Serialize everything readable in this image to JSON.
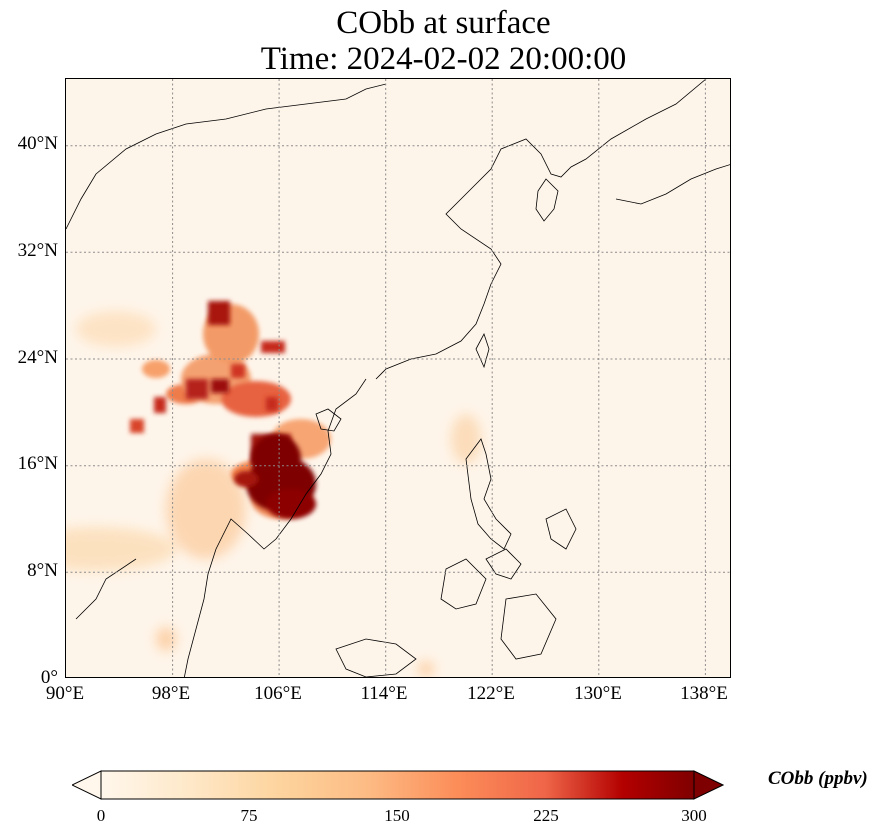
{
  "title_line1": "CObb at surface",
  "title_line2": "Time: 2024-02-02 20:00:00",
  "lat_labels": [
    "40°N",
    "32°N",
    "24°N",
    "16°N",
    "8°N",
    "0°"
  ],
  "lon_labels": [
    "90°E",
    "98°E",
    "106°E",
    "114°E",
    "122°E",
    "130°E",
    "138°E"
  ],
  "colorbar": {
    "label": "CObb (ppbv)",
    "ticks": [
      "0",
      "75",
      "150",
      "225",
      "300"
    ],
    "colormap": "OrRd",
    "extend": "both",
    "min": 0,
    "max": 300
  },
  "map": {
    "extent_lon": [
      90,
      140
    ],
    "extent_lat": [
      0,
      45
    ],
    "gridlines": "dotted",
    "colors": {
      "low": "#fef5ea",
      "mid": "#f9ab6c",
      "high": "#7f0000",
      "coast": "#000000",
      "grid": "#8c8c8c"
    }
  }
}
